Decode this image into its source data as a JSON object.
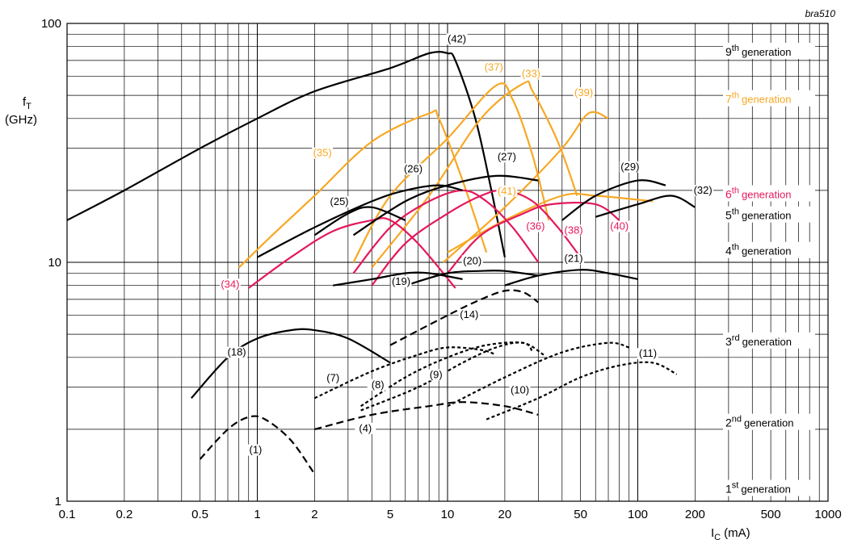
{
  "chart_data": {
    "type": "line",
    "title": "",
    "xlabel": "I",
    "xlabel_sub": "C",
    "xlabel_unit": "(mA)",
    "ylabel": "f",
    "ylabel_sub": "T",
    "ylabel_unit": "(GHz)",
    "corner_label": "bra510",
    "x_scale": "log",
    "y_scale": "log",
    "xlim": [
      0.1,
      1000
    ],
    "ylim": [
      1,
      100
    ],
    "grid": true,
    "x_ticks": [
      {
        "v": 0.1,
        "label": "0.1"
      },
      {
        "v": 0.2,
        "label": "0.2"
      },
      {
        "v": 0.5,
        "label": "0.5"
      },
      {
        "v": 1,
        "label": "1"
      },
      {
        "v": 2,
        "label": "2"
      },
      {
        "v": 5,
        "label": "5"
      },
      {
        "v": 10,
        "label": "10"
      },
      {
        "v": 20,
        "label": "20"
      },
      {
        "v": 50,
        "label": "50"
      },
      {
        "v": 100,
        "label": "100"
      },
      {
        "v": 200,
        "label": "200"
      },
      {
        "v": 500,
        "label": "500"
      },
      {
        "v": 1000,
        "label": "1000"
      }
    ],
    "y_ticks": [
      {
        "v": 1,
        "label": "1"
      },
      {
        "v": 10,
        "label": "10"
      },
      {
        "v": 100,
        "label": "100"
      }
    ],
    "colors": {
      "black": "#000000",
      "orange": "#f7a823",
      "magenta": "#e4195a"
    },
    "generations": [
      {
        "id": "gen9",
        "base": "9",
        "sup": "th",
        "rest": "generation",
        "y": 75,
        "color": "black"
      },
      {
        "id": "gen7",
        "base": "7",
        "sup": "th",
        "rest": "generation",
        "y": 47.5,
        "color": "orange"
      },
      {
        "id": "gen6",
        "base": "6",
        "sup": "th",
        "rest": "generation",
        "y": 19,
        "color": "magenta"
      },
      {
        "id": "gen5",
        "base": "5",
        "sup": "th",
        "rest": "generation",
        "y": 15.5,
        "color": "black"
      },
      {
        "id": "gen4",
        "base": "4",
        "sup": "th",
        "rest": "generation",
        "y": 11,
        "color": "black"
      },
      {
        "id": "gen3",
        "base": "3",
        "sup": "rd",
        "rest": "generation",
        "y": 4.6,
        "color": "black"
      },
      {
        "id": "gen2",
        "base": "2",
        "sup": "nd",
        "rest": "generation",
        "y": 2.1,
        "color": "black"
      },
      {
        "id": "gen1",
        "base": "1",
        "sup": "st",
        "rest": "generation",
        "y": 1.11,
        "color": "black"
      }
    ],
    "series": [
      {
        "name": "(42)",
        "color": "black",
        "style": "solid",
        "points": [
          [
            0.1,
            15
          ],
          [
            0.2,
            20
          ],
          [
            0.5,
            30
          ],
          [
            1,
            40
          ],
          [
            2,
            52
          ],
          [
            5,
            65
          ],
          [
            8,
            75
          ],
          [
            10,
            75
          ],
          [
            11,
            70
          ],
          [
            14,
            40
          ],
          [
            17,
            20
          ],
          [
            20,
            10.5
          ]
        ],
        "label_at": [
          11.2,
          84
        ]
      },
      {
        "name": "(37)",
        "color": "orange",
        "style": "solid",
        "points": [
          [
            3.2,
            10
          ],
          [
            5,
            19
          ],
          [
            10,
            33
          ],
          [
            18,
            55
          ],
          [
            22,
            48
          ],
          [
            28,
            28
          ],
          [
            34,
            15
          ]
        ],
        "label_at": [
          17.5,
          64
        ]
      },
      {
        "name": "(33)",
        "color": "orange",
        "style": "solid",
        "points": [
          [
            4,
            9.5
          ],
          [
            8,
            19
          ],
          [
            15,
            40
          ],
          [
            25,
            56
          ],
          [
            28,
            52
          ],
          [
            38,
            32
          ],
          [
            48,
            19
          ]
        ],
        "label_at": [
          27.5,
          60
        ]
      },
      {
        "name": "(39)",
        "color": "orange",
        "style": "solid",
        "points": [
          [
            9.5,
            10
          ],
          [
            20,
            17
          ],
          [
            40,
            30
          ],
          [
            55,
            42
          ],
          [
            70,
            40
          ]
        ],
        "label_at": [
          52,
          50
        ]
      },
      {
        "name": "(35)",
        "color": "orange",
        "style": "solid",
        "points": [
          [
            0.8,
            9.5
          ],
          [
            1.2,
            13
          ],
          [
            2,
            19
          ],
          [
            4,
            32
          ],
          [
            8,
            42
          ],
          [
            9,
            40
          ],
          [
            12,
            22
          ],
          [
            16,
            11
          ]
        ],
        "label_at": [
          2.2,
          28
        ]
      },
      {
        "name": "(41)",
        "color": "orange",
        "style": "solid",
        "points": [
          [
            10,
            11
          ],
          [
            20,
            15
          ],
          [
            40,
            19
          ],
          [
            60,
            19
          ],
          [
            120,
            18
          ]
        ],
        "label_at": [
          20.5,
          19.4
        ]
      },
      {
        "name": "(34)",
        "color": "magenta",
        "style": "solid",
        "points": [
          [
            0.9,
            7.8
          ],
          [
            1.5,
            10.5
          ],
          [
            2.5,
            13.5
          ],
          [
            4,
            15
          ],
          [
            5,
            15
          ],
          [
            7,
            12
          ],
          [
            11,
            7.8
          ]
        ],
        "label_at": [
          0.72,
          7.9
        ]
      },
      {
        "name": "(36)",
        "color": "magenta",
        "style": "solid",
        "points": [
          [
            3.2,
            9
          ],
          [
            5,
            14
          ],
          [
            8,
            18
          ],
          [
            12,
            20
          ],
          [
            16,
            18
          ],
          [
            22,
            14
          ],
          [
            30,
            10
          ]
        ],
        "label_at": [
          29,
          13.8
        ]
      },
      {
        "name": "(38)",
        "color": "magenta",
        "style": "solid",
        "points": [
          [
            4,
            8
          ],
          [
            6,
            12
          ],
          [
            10,
            16
          ],
          [
            15,
            19
          ],
          [
            20,
            20
          ],
          [
            28,
            18
          ],
          [
            38,
            14
          ],
          [
            50,
            10.5
          ]
        ],
        "label_at": [
          46,
          13.3
        ]
      },
      {
        "name": "(40)",
        "color": "magenta",
        "style": "solid",
        "points": [
          [
            10,
            9
          ],
          [
            15,
            13
          ],
          [
            25,
            16
          ],
          [
            35,
            17.5
          ],
          [
            60,
            17.5
          ],
          [
            80,
            15
          ]
        ],
        "label_at": [
          80,
          13.8
        ]
      },
      {
        "name": "(26)",
        "color": "black",
        "style": "solid",
        "points": [
          [
            1,
            10.5
          ],
          [
            2,
            14
          ],
          [
            4,
            18
          ],
          [
            6,
            20
          ],
          [
            9,
            21
          ],
          [
            12,
            20
          ]
        ],
        "label_at": [
          6.6,
          24
        ]
      },
      {
        "name": "(27)",
        "color": "black",
        "style": "solid",
        "points": [
          [
            3.2,
            13
          ],
          [
            6,
            18
          ],
          [
            10,
            21
          ],
          [
            18,
            23
          ],
          [
            30,
            22
          ]
        ],
        "label_at": [
          20.5,
          27
        ]
      },
      {
        "name": "(25)",
        "color": "black",
        "style": "solid",
        "points": [
          [
            2,
            13
          ],
          [
            3,
            16
          ],
          [
            4,
            17
          ],
          [
            6,
            15
          ]
        ],
        "label_at": [
          2.7,
          17.5
        ]
      },
      {
        "name": "(29)",
        "color": "black",
        "style": "solid",
        "points": [
          [
            40,
            15
          ],
          [
            60,
            19
          ],
          [
            100,
            22
          ],
          [
            140,
            21
          ]
        ],
        "label_at": [
          91,
          24.5
        ]
      },
      {
        "name": "(32)",
        "color": "black",
        "style": "solid",
        "points": [
          [
            60,
            15.5
          ],
          [
            100,
            17.5
          ],
          [
            150,
            19
          ],
          [
            200,
            17
          ]
        ],
        "label_at": [
          220,
          19.5
        ]
      },
      {
        "name": "(19)",
        "color": "black",
        "style": "solid",
        "points": [
          [
            2.5,
            8
          ],
          [
            4,
            8.5
          ],
          [
            6,
            9
          ],
          [
            8,
            9
          ],
          [
            12,
            8.5
          ]
        ],
        "label_at": [
          5.7,
          8.1
        ]
      },
      {
        "name": "(20)",
        "color": "black",
        "style": "solid",
        "points": [
          [
            6,
            8
          ],
          [
            10,
            9
          ],
          [
            15,
            9.2
          ],
          [
            20,
            9.2
          ],
          [
            30,
            8.8
          ]
        ],
        "label_at": [
          13.5,
          9.9
        ]
      },
      {
        "name": "(21)",
        "color": "black",
        "style": "solid",
        "points": [
          [
            20,
            8
          ],
          [
            30,
            8.8
          ],
          [
            50,
            9.3
          ],
          [
            70,
            9
          ],
          [
            100,
            8.5
          ]
        ],
        "label_at": [
          46,
          10.1
        ]
      },
      {
        "name": "(14)",
        "color": "black",
        "style": "dashed",
        "points": [
          [
            5,
            4.5
          ],
          [
            10,
            6
          ],
          [
            15,
            7
          ],
          [
            20,
            7.6
          ],
          [
            25,
            7.5
          ],
          [
            30,
            6.8
          ]
        ],
        "label_at": [
          13,
          5.9
        ]
      },
      {
        "name": "(18)",
        "color": "black",
        "style": "solid",
        "points": [
          [
            0.45,
            2.7
          ],
          [
            0.7,
            4
          ],
          [
            1,
            4.8
          ],
          [
            1.5,
            5.2
          ],
          [
            2,
            5.2
          ],
          [
            3,
            4.8
          ],
          [
            5,
            3.8
          ]
        ],
        "label_at": [
          0.78,
          4.1
        ]
      },
      {
        "name": "(7)",
        "color": "black",
        "style": "dotted",
        "points": [
          [
            2,
            2.7
          ],
          [
            4,
            3.5
          ],
          [
            7,
            4.1
          ],
          [
            10,
            4.4
          ],
          [
            15,
            4.3
          ],
          [
            18,
            4.1
          ]
        ],
        "label_at": [
          2.5,
          3.2
        ]
      },
      {
        "name": "(8)",
        "color": "black",
        "style": "dotted",
        "points": [
          [
            3.5,
            2.5
          ],
          [
            6,
            3.3
          ],
          [
            10,
            4
          ],
          [
            16,
            4.5
          ],
          [
            25,
            4.6
          ],
          [
            28,
            4.2
          ]
        ],
        "label_at": [
          4.3,
          3
        ]
      },
      {
        "name": "(9)",
        "color": "black",
        "style": "dotted",
        "points": [
          [
            3.5,
            2.4
          ],
          [
            7,
            3
          ],
          [
            12,
            3.8
          ],
          [
            18,
            4.4
          ],
          [
            25,
            4.6
          ],
          [
            32,
            4.1
          ]
        ],
        "label_at": [
          8.7,
          3.3
        ]
      },
      {
        "name": "(10)",
        "color": "black",
        "style": "dotted",
        "points": [
          [
            10,
            2.5
          ],
          [
            20,
            3.3
          ],
          [
            40,
            4.2
          ],
          [
            70,
            4.6
          ],
          [
            90,
            4.4
          ]
        ],
        "label_at": [
          24,
          2.85
        ]
      },
      {
        "name": "(11)",
        "color": "black",
        "style": "dotted",
        "points": [
          [
            16,
            2.2
          ],
          [
            30,
            2.7
          ],
          [
            50,
            3.3
          ],
          [
            80,
            3.7
          ],
          [
            120,
            3.8
          ],
          [
            160,
            3.4
          ]
        ],
        "label_at": [
          113,
          4.05
        ]
      },
      {
        "name": "(4)",
        "color": "black",
        "style": "dashed",
        "points": [
          [
            2,
            2
          ],
          [
            4,
            2.3
          ],
          [
            8,
            2.5
          ],
          [
            12,
            2.6
          ],
          [
            20,
            2.5
          ],
          [
            30,
            2.3
          ]
        ],
        "label_at": [
          3.7,
          1.97
        ]
      },
      {
        "name": "(1)",
        "color": "black",
        "style": "dashed",
        "points": [
          [
            0.5,
            1.5
          ],
          [
            0.7,
            2
          ],
          [
            0.9,
            2.25
          ],
          [
            1.1,
            2.2
          ],
          [
            1.5,
            1.8
          ],
          [
            2,
            1.3
          ]
        ],
        "label_at": [
          0.98,
          1.6
        ]
      }
    ]
  }
}
